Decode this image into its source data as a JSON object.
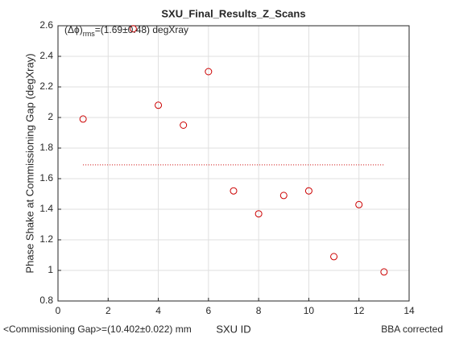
{
  "chart_data": {
    "type": "scatter",
    "title": "SXU_Final_Results_Z_Scans",
    "xlabel": "SXU ID",
    "ylabel": "Phase Shake at Commissioning Gap (degXray)",
    "x": [
      1,
      3,
      4,
      5,
      6,
      7,
      8,
      9,
      10,
      11,
      12,
      13
    ],
    "series": [
      {
        "color": "#cc0000",
        "values": [
          1.99,
          2.58,
          2.08,
          1.95,
          2.3,
          1.52,
          1.37,
          1.49,
          1.52,
          1.09,
          1.43,
          0.99
        ]
      }
    ],
    "reference_line": {
      "y": 1.69,
      "x": [
        1,
        13
      ],
      "color": "#cc0000"
    },
    "annotation": {
      "main": "(Δϕ)",
      "sub": "rms",
      "rest": "=(1.69±0.48) degXray"
    },
    "footer_left": "<Commissioning Gap>=(10.402±0.022) mm",
    "footer_right": "BBA corrected",
    "xlim": [
      0,
      14
    ],
    "xticks": [
      0,
      2,
      4,
      6,
      8,
      10,
      12,
      14
    ],
    "ylim": [
      0.8,
      2.6
    ],
    "yticks": [
      0.8,
      1,
      1.2,
      1.4,
      1.6,
      1.8,
      2,
      2.2,
      2.4,
      2.6
    ],
    "grid": true
  }
}
